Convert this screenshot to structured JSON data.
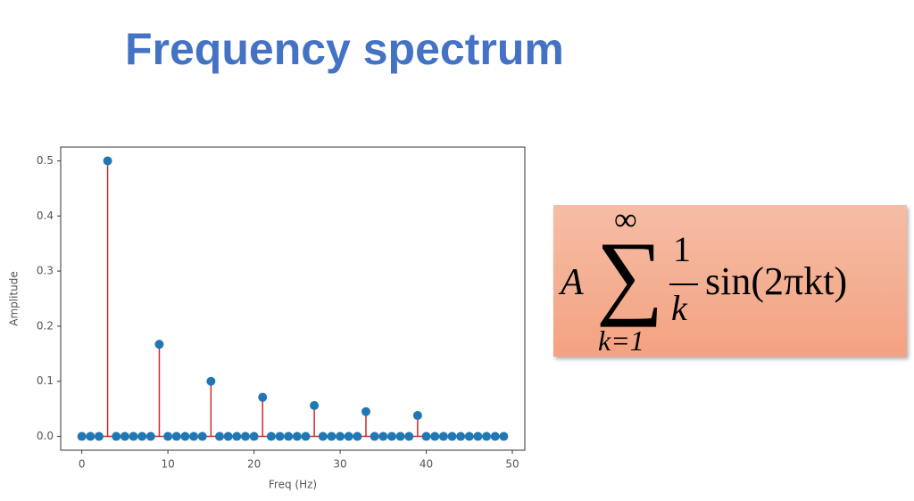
{
  "title": "Frequency spectrum",
  "chart_data": {
    "type": "stem",
    "x": [
      0,
      1,
      2,
      3,
      4,
      5,
      6,
      7,
      8,
      9,
      10,
      11,
      12,
      13,
      14,
      15,
      16,
      17,
      18,
      19,
      20,
      21,
      22,
      23,
      24,
      25,
      26,
      27,
      28,
      29,
      30,
      31,
      32,
      33,
      34,
      35,
      36,
      37,
      38,
      39,
      40,
      41,
      42,
      43,
      44,
      45,
      46,
      47,
      48,
      49
    ],
    "values": [
      0,
      0,
      0,
      0.5,
      0,
      0,
      0,
      0,
      0,
      0.167,
      0,
      0,
      0,
      0,
      0,
      0.1,
      0,
      0,
      0,
      0,
      0,
      0.071,
      0,
      0,
      0,
      0,
      0,
      0.056,
      0,
      0,
      0,
      0,
      0,
      0.045,
      0,
      0,
      0,
      0,
      0,
      0.038,
      0,
      0,
      0,
      0,
      0,
      0,
      0,
      0,
      0,
      0
    ],
    "stem_color": "#d62728",
    "marker_color": "#1f77b4",
    "xlabel": "Freq (Hz)",
    "ylabel": "Amplitude",
    "xlim": [
      -2.45,
      51.45
    ],
    "ylim": [
      -0.025,
      0.525
    ],
    "xticks": [
      0,
      10,
      20,
      30,
      40,
      50
    ],
    "yticks": [
      {
        "value": 0,
        "label": "0.0"
      },
      0.1,
      0.2,
      0.3,
      0.4,
      0.5
    ]
  },
  "formula": {
    "coefficient": "A",
    "sum": "∑",
    "upper": "∞",
    "lower": "k=1",
    "numerator": "1",
    "denominator": "k",
    "function": "sin(2πkt)"
  }
}
